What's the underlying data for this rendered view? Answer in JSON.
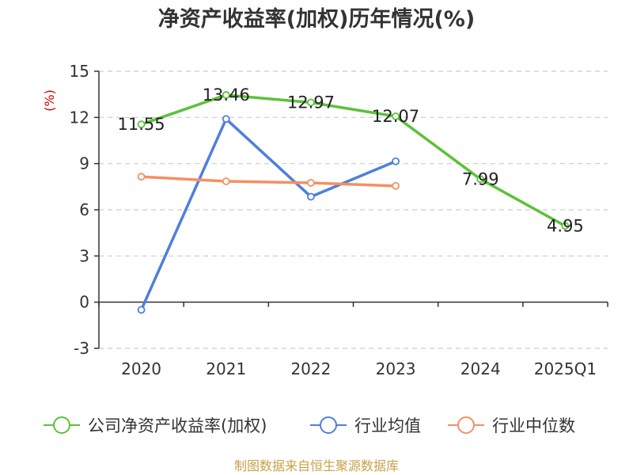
{
  "chart_data": {
    "type": "line",
    "title": "净资产收益率(加权)历年情况(%)",
    "ylabel": "(%)",
    "ylim": [
      -3,
      15
    ],
    "yticks": [
      -3,
      0,
      3,
      6,
      9,
      12,
      15
    ],
    "categories": [
      "2020",
      "2021",
      "2022",
      "2023",
      "2024",
      "2025Q1"
    ],
    "grid": true,
    "legend_position": "bottom",
    "series": [
      {
        "name": "公司净资产收益率(加权)",
        "color": "#5cc23a",
        "values": [
          11.55,
          13.46,
          12.97,
          12.07,
          7.99,
          4.95
        ],
        "labels": [
          "11.55",
          "13.46",
          "12.97",
          "12.07",
          "7.99",
          "4.95"
        ]
      },
      {
        "name": "行业均值",
        "color": "#4f7fdd",
        "values": [
          -0.5,
          11.9,
          6.85,
          9.15,
          null,
          null
        ]
      },
      {
        "name": "行业中位数",
        "color": "#f49062",
        "values": [
          8.15,
          7.85,
          7.75,
          7.55,
          null,
          null
        ]
      }
    ]
  },
  "source": "制图数据来自恒生聚源数据库"
}
